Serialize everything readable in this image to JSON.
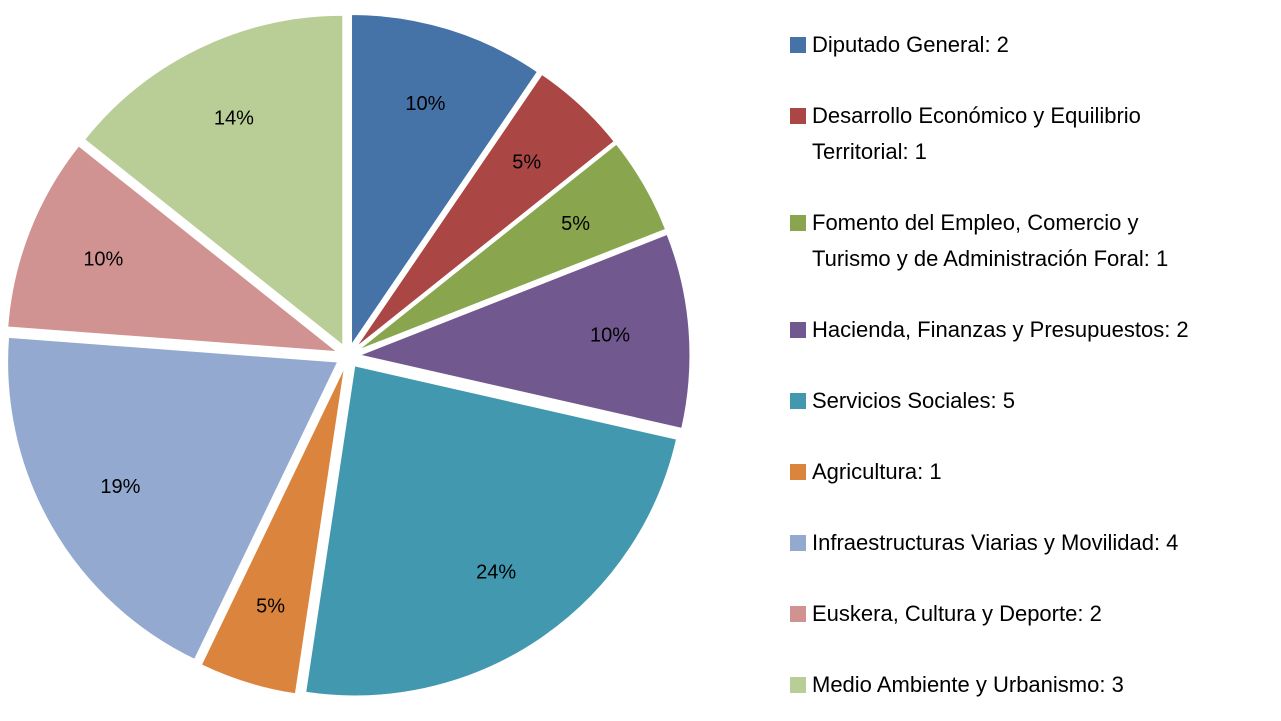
{
  "chart_data": {
    "type": "pie",
    "categories": [
      "Diputado General: 2",
      "Desarrollo Económico y Equilibrio\nTerritorial: 1",
      "Fomento del Empleo, Comercio y\nTurismo y de Administración Foral: 1",
      "Hacienda, Finanzas y Presupuestos: 2",
      "Servicios Sociales: 5",
      "Agricultura: 1",
      "Infraestructuras Viarias y Movilidad: 4",
      "Euskera, Cultura y Deporte: 2",
      "Medio Ambiente y Urbanismo: 3"
    ],
    "values": [
      9.52,
      4.76,
      4.76,
      9.52,
      23.81,
      4.76,
      19.05,
      9.52,
      14.29
    ],
    "value_labels": [
      "10%",
      "5%",
      "5%",
      "10%",
      "24%",
      "5%",
      "19%",
      "10%",
      "14%"
    ],
    "colors": [
      "#4572a7",
      "#aa4643",
      "#89a54e",
      "#71588f",
      "#4198af",
      "#db843d",
      "#93a9cf",
      "#d19392",
      "#b9cd96"
    ],
    "legend": "right"
  }
}
